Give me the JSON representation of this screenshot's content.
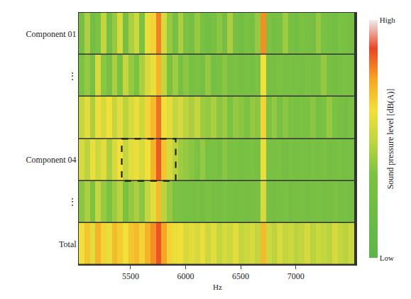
{
  "chart_data": {
    "type": "heatmap",
    "x_label": "Hz",
    "colorbar_label": "Sound pressure level [dB(A)]",
    "categories": [
      "Component 01",
      "⋮",
      null,
      "Component 04",
      "⋮",
      "Total"
    ],
    "x": [
      5055,
      5105,
      5155,
      5205,
      5255,
      5305,
      5355,
      5405,
      5455,
      5505,
      5555,
      5605,
      5655,
      5705,
      5755,
      5805,
      5855,
      5905,
      5955,
      6005,
      6055,
      6105,
      6155,
      6205,
      6255,
      6305,
      6355,
      6405,
      6455,
      6505,
      6555,
      6605,
      6655,
      6705,
      6755,
      6805,
      6855,
      6905,
      6955,
      7005,
      7055,
      7105,
      7155,
      7205,
      7255,
      7305,
      7355,
      7405,
      7455,
      7505
    ],
    "z": [
      [
        30,
        45,
        25,
        35,
        50,
        28,
        40,
        55,
        30,
        45,
        52,
        35,
        60,
        65,
        80,
        55,
        40,
        30,
        45,
        35,
        28,
        40,
        32,
        25,
        30,
        38,
        28,
        45,
        30,
        25,
        35,
        30,
        40,
        78,
        35,
        28,
        30,
        42,
        30,
        25,
        35,
        30,
        28,
        40,
        32,
        30,
        25,
        35,
        30,
        28
      ],
      [
        35,
        40,
        30,
        55,
        38,
        30,
        45,
        32,
        50,
        40,
        35,
        45,
        55,
        60,
        72,
        50,
        35,
        42,
        30,
        38,
        30,
        35,
        28,
        40,
        30,
        32,
        38,
        30,
        35,
        28,
        32,
        30,
        35,
        62,
        30,
        28,
        35,
        30,
        32,
        30,
        28,
        35,
        30,
        32,
        40,
        30,
        28,
        30,
        35,
        30
      ],
      [
        50,
        58,
        45,
        60,
        55,
        62,
        50,
        58,
        48,
        55,
        60,
        52,
        65,
        70,
        82,
        62,
        58,
        50,
        55,
        48,
        45,
        50,
        42,
        40,
        45,
        38,
        42,
        35,
        40,
        38,
        35,
        40,
        38,
        65,
        35,
        40,
        32,
        38,
        35,
        30,
        35,
        32,
        38,
        30,
        35,
        40,
        32,
        30,
        28,
        35
      ],
      [
        55,
        48,
        60,
        52,
        58,
        45,
        55,
        62,
        50,
        58,
        60,
        55,
        62,
        72,
        85,
        68,
        55,
        48,
        42,
        40,
        38,
        35,
        40,
        32,
        35,
        30,
        38,
        32,
        35,
        30,
        32,
        35,
        30,
        60,
        32,
        30,
        35,
        28,
        32,
        30,
        30,
        28,
        32,
        30,
        35,
        28,
        30,
        32,
        28,
        30
      ],
      [
        38,
        45,
        35,
        50,
        40,
        35,
        42,
        48,
        35,
        40,
        45,
        38,
        50,
        58,
        70,
        48,
        40,
        35,
        32,
        30,
        30,
        32,
        28,
        35,
        30,
        28,
        32,
        30,
        28,
        30,
        28,
        30,
        32,
        55,
        30,
        28,
        30,
        32,
        28,
        30,
        30,
        28,
        30,
        32,
        28,
        30,
        35,
        28,
        30,
        28
      ],
      [
        62,
        68,
        58,
        72,
        65,
        60,
        70,
        66,
        62,
        68,
        70,
        65,
        72,
        78,
        86,
        75,
        65,
        60,
        62,
        55,
        58,
        55,
        60,
        52,
        58,
        50,
        55,
        52,
        58,
        50,
        52,
        55,
        50,
        70,
        52,
        48,
        55,
        50,
        52,
        48,
        50,
        55,
        48,
        52,
        50,
        48,
        55,
        50,
        48,
        52
      ]
    ],
    "xlim": [
      5030,
      7550
    ],
    "xticks": [
      5500,
      6000,
      6500,
      7000
    ],
    "colorbar_range": [
      0,
      100
    ],
    "colorbar_ticks": [
      {
        "value": 0,
        "label": "Low"
      },
      {
        "value": 100,
        "label": "High"
      }
    ],
    "highlight_box": {
      "x": [
        5420,
        5910
      ],
      "category": "Component 04"
    }
  }
}
